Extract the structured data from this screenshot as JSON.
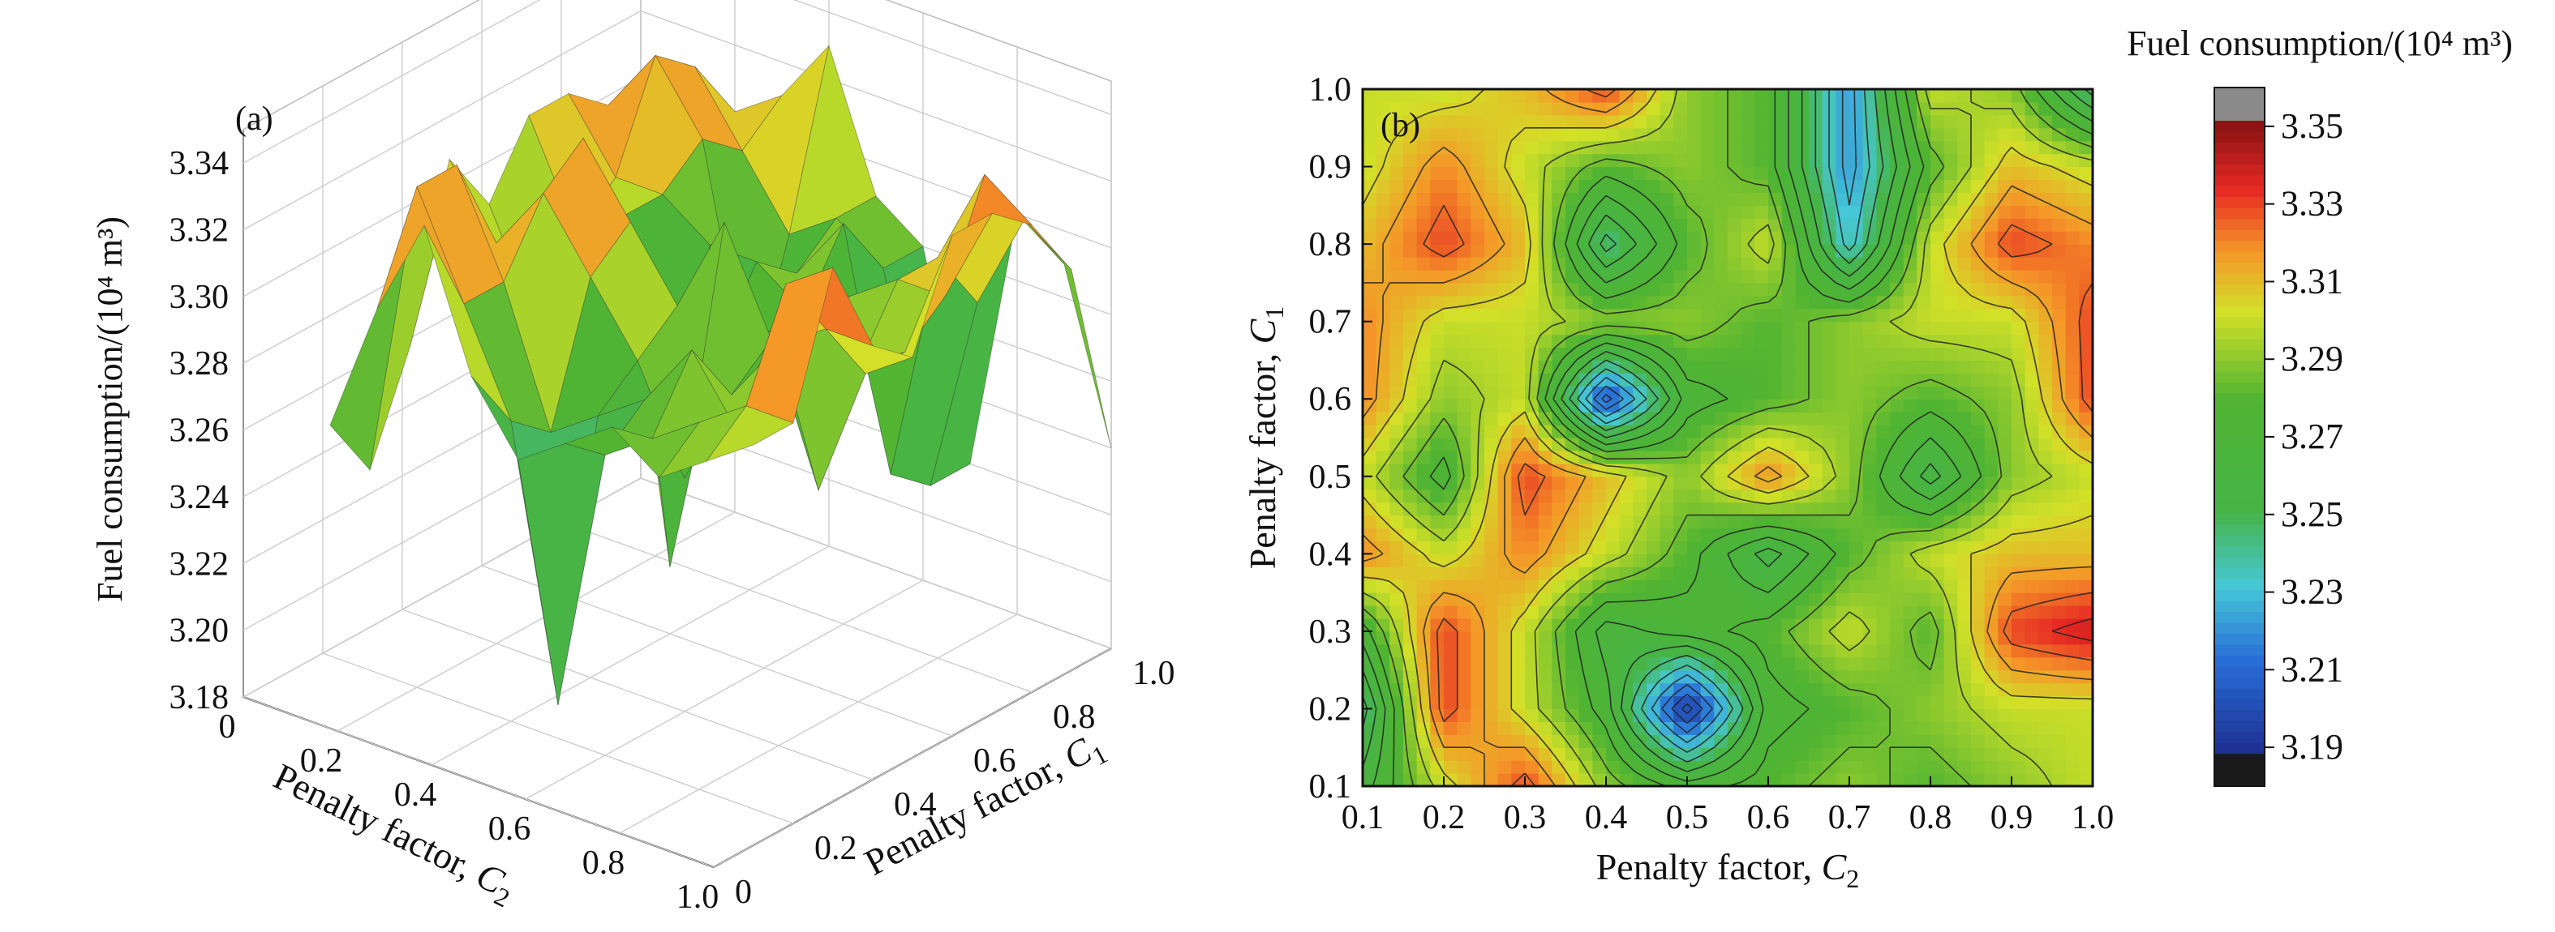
{
  "chart_data": [
    {
      "type": "surface",
      "panel_label": "(a)",
      "zlabel": "Fuel consumption/(10⁴ m³)",
      "xlabel_prefix": "Penalty factor, ",
      "xlabel_var": "C",
      "xlabel_sub": "2",
      "ylabel_prefix": "Penalty factor, ",
      "ylabel_var": "C",
      "ylabel_sub": "1",
      "zlim": [
        3.18,
        3.35
      ],
      "z_ticks": [
        "3.18",
        "3.20",
        "3.22",
        "3.24",
        "3.26",
        "3.28",
        "3.30",
        "3.32",
        "3.34"
      ],
      "x_ticks": [
        "0",
        "0.2",
        "0.4",
        "0.6",
        "0.8",
        "1.0"
      ],
      "y_ticks": [
        "0",
        "0.2",
        "0.4",
        "0.6",
        "0.8",
        "1.0"
      ],
      "grid": true
    },
    {
      "type": "contour",
      "panel_label": "(b)",
      "xlabel_prefix": "Penalty factor, ",
      "xlabel_var": "C",
      "xlabel_sub": "2",
      "ylabel_prefix": "Penalty factor, ",
      "ylabel_var": "C",
      "ylabel_sub": "1",
      "x": [
        0.1,
        0.2,
        0.3,
        0.4,
        0.5,
        0.6,
        0.7,
        0.8,
        0.9,
        1.0
      ],
      "y": [
        0.1,
        0.2,
        0.3,
        0.4,
        0.5,
        0.6,
        0.7,
        0.8,
        0.9,
        1.0
      ],
      "x_ticks": [
        "0.1",
        "0.2",
        "0.3",
        "0.4",
        "0.5",
        "0.6",
        "0.7",
        "0.8",
        "0.9",
        "1.0"
      ],
      "y_ticks": [
        "0.1",
        "0.2",
        "0.3",
        "0.4",
        "0.5",
        "0.6",
        "0.7",
        "0.8",
        "0.9",
        "1.0"
      ],
      "z": [
        [
          3.26,
          3.3,
          3.33,
          3.29,
          3.27,
          3.28,
          3.29,
          3.28,
          3.29,
          3.3
        ],
        [
          3.24,
          3.33,
          3.3,
          3.27,
          3.19,
          3.27,
          3.28,
          3.29,
          3.3,
          3.3
        ],
        [
          3.27,
          3.33,
          3.3,
          3.26,
          3.27,
          3.28,
          3.3,
          3.28,
          3.33,
          3.34
        ],
        [
          3.32,
          3.3,
          3.32,
          3.3,
          3.28,
          3.25,
          3.28,
          3.3,
          3.31,
          3.31
        ],
        [
          3.3,
          3.27,
          3.33,
          3.31,
          3.29,
          3.32,
          3.29,
          3.25,
          3.29,
          3.3
        ],
        [
          3.32,
          3.29,
          3.3,
          3.2,
          3.27,
          3.28,
          3.29,
          3.28,
          3.29,
          3.33
        ],
        [
          3.32,
          3.3,
          3.3,
          3.29,
          3.29,
          3.28,
          3.29,
          3.3,
          3.3,
          3.33
        ],
        [
          3.31,
          3.33,
          3.31,
          3.24,
          3.28,
          3.3,
          3.23,
          3.3,
          3.33,
          3.32
        ],
        [
          3.3,
          3.32,
          3.3,
          3.28,
          3.29,
          3.28,
          3.22,
          3.28,
          3.31,
          3.3
        ],
        [
          3.3,
          3.3,
          3.31,
          3.33,
          3.29,
          3.28,
          3.22,
          3.3,
          3.29,
          3.24
        ]
      ],
      "grid": false
    },
    {
      "type": "colorbar",
      "title": "Fuel consumption/(10⁴ m³)",
      "range": [
        3.18,
        3.36
      ],
      "ticks": [
        "3.19",
        "3.21",
        "3.23",
        "3.25",
        "3.27",
        "3.29",
        "3.31",
        "3.33",
        "3.35"
      ],
      "tick_values": [
        3.19,
        3.21,
        3.23,
        3.25,
        3.27,
        3.29,
        3.31,
        3.33,
        3.35
      ]
    }
  ]
}
